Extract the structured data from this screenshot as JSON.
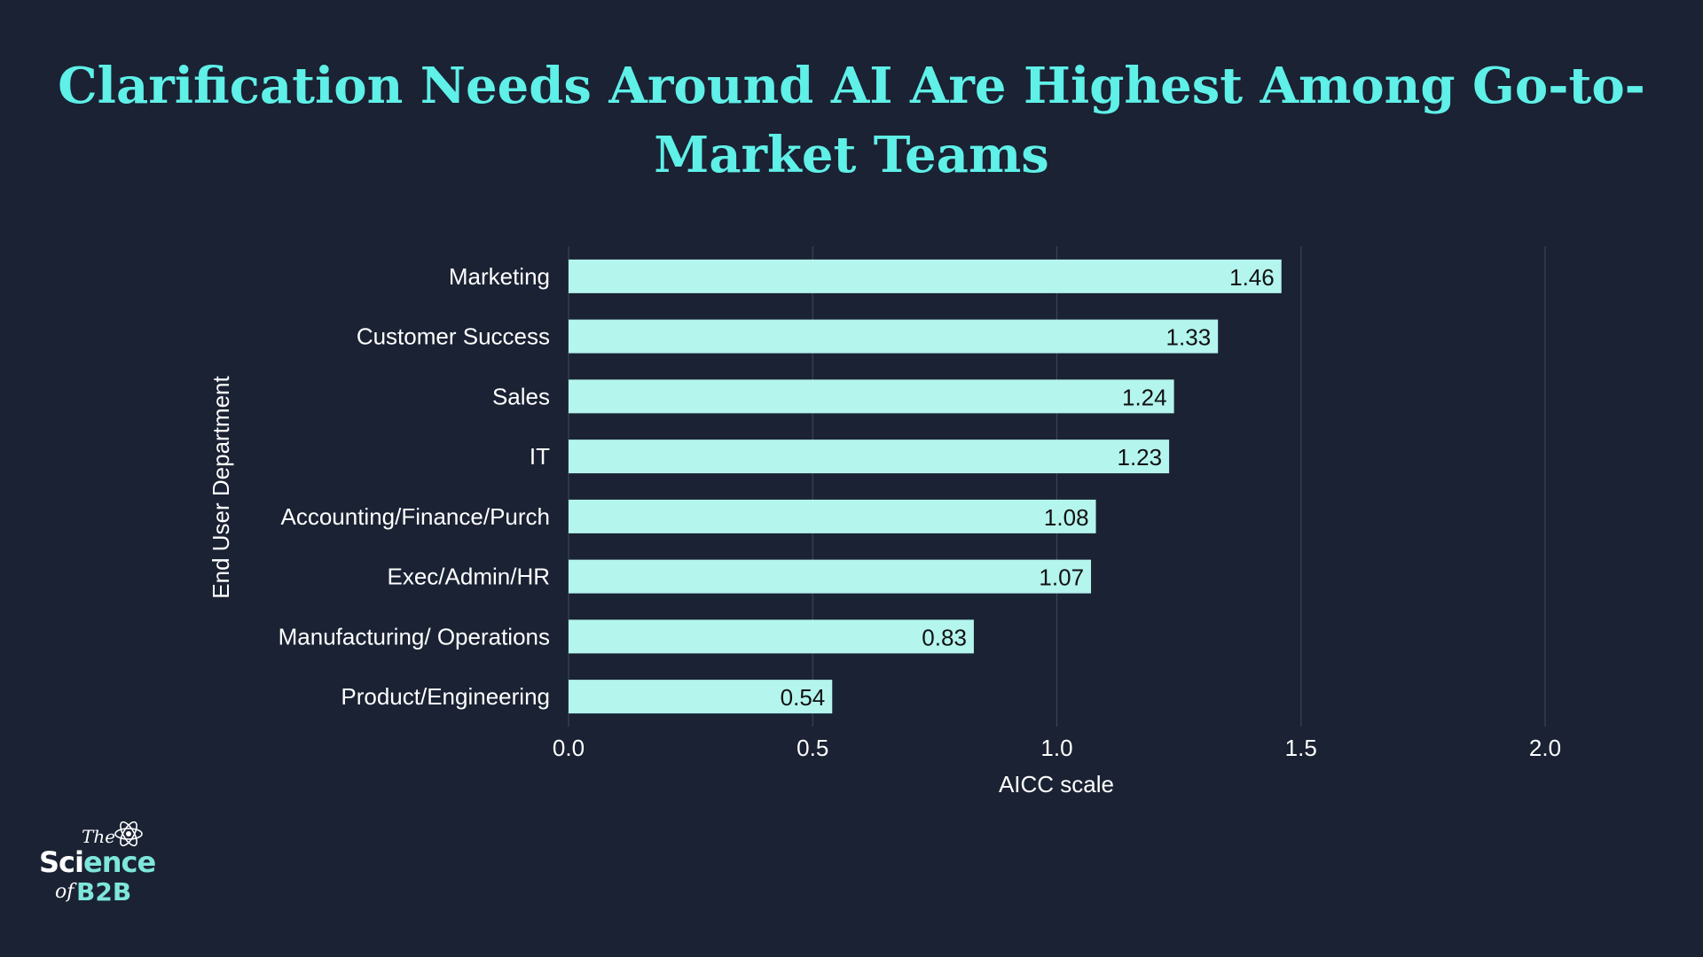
{
  "colors": {
    "background": "#1a2233",
    "title": "#5ff0e8",
    "bar": "#b4f5ee",
    "grid": "#3a4456",
    "text": "#ffffff",
    "label_text": "#111111"
  },
  "chart_data": {
    "type": "bar",
    "orientation": "horizontal",
    "title_line1": "Clarification Needs Around AI Are Highest Among Go-to-",
    "title_line2": "Market Teams",
    "xlabel": "AICC scale",
    "ylabel": "End User Department",
    "xlim": [
      0,
      2.0
    ],
    "xticks": [
      "0.0",
      "0.5",
      "1.0",
      "1.5",
      "2.0"
    ],
    "xtick_values": [
      0,
      0.5,
      1.0,
      1.5,
      2.0
    ],
    "categories": [
      "Marketing",
      "Customer Success",
      "Sales",
      "IT",
      "Accounting/Finance/Purch",
      "Exec/Admin/HR",
      "Manufacturing/ Operations",
      "Product/Engineering"
    ],
    "values": [
      1.46,
      1.33,
      1.24,
      1.23,
      1.08,
      1.07,
      0.83,
      0.54
    ],
    "value_labels": [
      "1.46",
      "1.33",
      "1.24",
      "1.23",
      "1.08",
      "1.07",
      "0.83",
      "0.54"
    ],
    "grid": "vertical"
  },
  "logo": {
    "the": "The",
    "science_1": "Sci",
    "science_2": "ence",
    "of": "of",
    "b2b": "B2B",
    "icon": "atom-icon"
  }
}
